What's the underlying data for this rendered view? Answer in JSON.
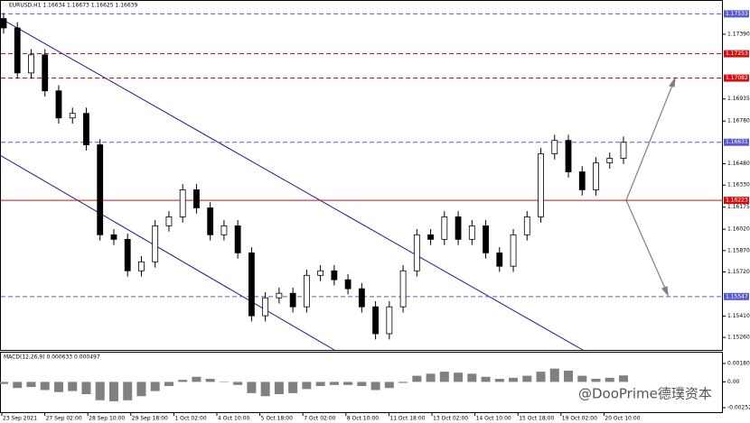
{
  "chart_data": {
    "type": "candlestick",
    "title": "EURUSD,H1  1.16634 1.16673 1.16625 1.16639",
    "candle_color": "#000000",
    "open": [
      1.175,
      1.17434,
      1.17118,
      1.17245,
      1.16992,
      1.16802,
      1.16834,
      1.16613,
      1.15981,
      1.15949,
      1.15728,
      1.15791,
      1.16044,
      1.16107,
      1.16297,
      1.1617,
      1.15981,
      1.16044,
      1.15854,
      1.15412,
      1.15538,
      1.1557,
      1.15475,
      1.15696,
      1.15728,
      1.15665,
      1.15602,
      1.15475,
      1.15286,
      1.15475,
      1.15728,
      1.15981,
      1.15949,
      1.16107,
      1.15949,
      1.16044,
      1.15854,
      1.1576,
      1.15981,
      1.16107,
      1.1655,
      1.16644,
      1.16423,
      1.16297,
      1.16486,
      1.16518
    ],
    "high": [
      1.1754,
      1.17474,
      1.17285,
      1.17285,
      1.17032,
      1.16874,
      1.16874,
      1.16653,
      1.16021,
      1.15989,
      1.15831,
      1.16084,
      1.16147,
      1.16337,
      1.16337,
      1.1621,
      1.16084,
      1.16084,
      1.15894,
      1.15578,
      1.1561,
      1.1561,
      1.15736,
      1.15768,
      1.15768,
      1.15705,
      1.15642,
      1.15515,
      1.15515,
      1.15768,
      1.16021,
      1.16021,
      1.16147,
      1.16147,
      1.16084,
      1.16084,
      1.15894,
      1.16021,
      1.16147,
      1.1659,
      1.16684,
      1.16684,
      1.16463,
      1.16526,
      1.16558,
      1.16671
    ],
    "low": [
      1.17394,
      1.17078,
      1.17078,
      1.16952,
      1.16762,
      1.16762,
      1.16573,
      1.15941,
      1.15909,
      1.15688,
      1.15688,
      1.15751,
      1.16004,
      1.16067,
      1.1613,
      1.15941,
      1.15941,
      1.15814,
      1.15372,
      1.15372,
      1.15498,
      1.15435,
      1.15435,
      1.15656,
      1.15625,
      1.15562,
      1.15435,
      1.15246,
      1.15246,
      1.15435,
      1.15688,
      1.15909,
      1.15909,
      1.15909,
      1.15909,
      1.15814,
      1.1572,
      1.1572,
      1.15941,
      1.16067,
      1.1651,
      1.16383,
      1.16257,
      1.16257,
      1.16446,
      1.16478
    ],
    "close": [
      1.17434,
      1.17118,
      1.17245,
      1.16992,
      1.16802,
      1.16834,
      1.16613,
      1.15981,
      1.15949,
      1.15728,
      1.15791,
      1.16044,
      1.16107,
      1.16297,
      1.1617,
      1.15981,
      1.16044,
      1.15854,
      1.15412,
      1.15538,
      1.1557,
      1.15475,
      1.15696,
      1.15728,
      1.15665,
      1.15602,
      1.15475,
      1.15286,
      1.15475,
      1.15728,
      1.15981,
      1.15949,
      1.16107,
      1.15949,
      1.16044,
      1.15854,
      1.1576,
      1.15981,
      1.16107,
      1.1655,
      1.16644,
      1.16423,
      1.16297,
      1.16486,
      1.16518,
      1.16631
    ],
    "ylim": [
      1.15172,
      1.17624
    ],
    "yticks": [
      {
        "value": 1.1739,
        "label": "1.17390"
      },
      {
        "value": 1.16935,
        "label": "1.16935"
      },
      {
        "value": 1.1678,
        "label": "1.16780"
      },
      {
        "value": 1.1648,
        "label": "1.16480"
      },
      {
        "value": 1.1633,
        "label": "1.16330"
      },
      {
        "value": 1.16175,
        "label": "1.16175"
      },
      {
        "value": 1.1602,
        "label": "1.16020"
      },
      {
        "value": 1.1587,
        "label": "1.15870"
      },
      {
        "value": 1.1572,
        "label": "1.15720"
      },
      {
        "value": 1.1541,
        "label": "1.15410"
      },
      {
        "value": 1.1526,
        "label": "1.15260"
      }
    ],
    "levels": [
      {
        "value": 1.17533,
        "label": "1.17533",
        "color": "#5a5ad0",
        "style": "dashed"
      },
      {
        "value": 1.17253,
        "label": "1.17253",
        "color": "#d01010",
        "style": "dashed"
      },
      {
        "value": 1.17082,
        "label": "1.17082",
        "color": "#d01010",
        "style": "dashed"
      },
      {
        "value": 1.16631,
        "label": "1.16631",
        "color": "#5a5ad0",
        "style": "dashed"
      },
      {
        "value": 1.16223,
        "label": "1.16223",
        "color": "#d01010",
        "style": "solid"
      },
      {
        "value": 1.15547,
        "label": "1.15547",
        "color": "#5a5ad0",
        "style": "dashed"
      }
    ],
    "x_labels": [
      "23 Sep 2021",
      "27 Sep 02:00",
      "28 Sep 10:00",
      "29 Sep 18:00",
      "1 Oct 02:00",
      "4 Oct 10:00",
      "5 Oct 18:00",
      "7 Oct 02:00",
      "8 Oct 10:00",
      "11 Oct 18:00",
      "13 Oct 02:00",
      "14 Oct 10:00",
      "15 Oct 18:00",
      "19 Oct 02:00",
      "20 Oct 10:00"
    ],
    "macd": {
      "title": "MACD(12,26,9) 0.000633 0.000497",
      "color": "#808080",
      "values": [
        -0.0002,
        -0.0006,
        -0.0005,
        -0.0008,
        -0.001,
        -0.0009,
        -0.0012,
        -0.0018,
        -0.0019,
        -0.0018,
        -0.0014,
        -0.0009,
        -0.0004,
        0.0002,
        0.0005,
        0.0003,
        0.0,
        -0.0003,
        -0.0011,
        -0.0014,
        -0.0012,
        -0.0011,
        -0.0007,
        -0.0004,
        -0.0003,
        -0.0003,
        -0.0004,
        -0.0008,
        -0.0006,
        -0.0001,
        0.0006,
        0.0008,
        0.001,
        0.0009,
        0.0008,
        0.0005,
        0.0003,
        0.0004,
        0.0006,
        0.001,
        0.0013,
        0.0011,
        0.0006,
        0.0003,
        0.0004,
        0.000633
      ],
      "ylim": [
        -0.002524,
        0.001803
      ],
      "yticks": [
        0.001803,
        {
          "value": 0,
          "label": "0.00"
        },
        -0.002524
      ]
    },
    "watermark": "@DooPrime德璞资本"
  }
}
